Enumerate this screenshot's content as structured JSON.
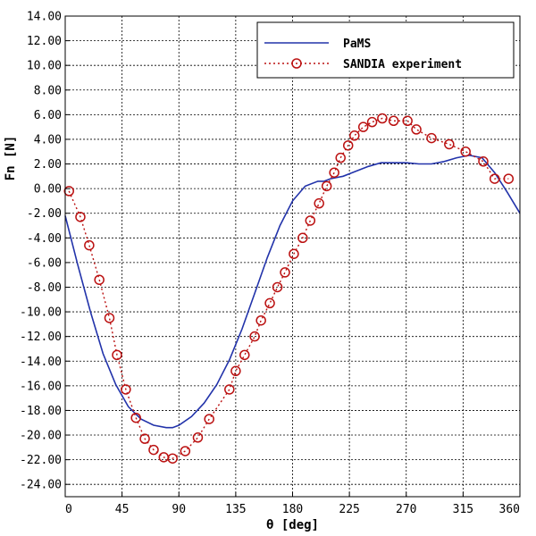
{
  "chart_data": {
    "type": "line",
    "xlabel": "θ [deg]",
    "ylabel": "Fn [N]",
    "xlim": [
      0,
      360
    ],
    "ylim": [
      -25,
      14
    ],
    "grid": true,
    "legend_position": "top-right",
    "x_ticks": [
      0,
      45,
      90,
      135,
      180,
      225,
      270,
      315,
      360
    ],
    "x_tick_labels": [
      "0",
      "45",
      "90",
      "135",
      "180",
      "225",
      "270",
      "315",
      "360"
    ],
    "y_ticks": [
      14,
      12,
      10,
      8,
      6,
      4,
      2,
      0,
      -2,
      -4,
      -6,
      -8,
      -10,
      -12,
      -14,
      -16,
      -18,
      -20,
      -22,
      -24
    ],
    "y_tick_labels": [
      "14.00",
      "12.00",
      "10.00",
      "8.00",
      "6.00",
      "4.00",
      "2.00",
      "0.00",
      "-2.00",
      "-4.00",
      "-6.00",
      "-8.00",
      "-10.00",
      "-12.00",
      "-14.00",
      "-16.00",
      "-18.00",
      "-20.00",
      "-22.00",
      "-24.00"
    ],
    "series": [
      {
        "name": "PaMS",
        "style": "solid-line",
        "color": "#2233aa",
        "x": [
          0,
          10,
          20,
          30,
          40,
          50,
          60,
          70,
          80,
          85,
          90,
          100,
          110,
          120,
          130,
          140,
          150,
          160,
          170,
          180,
          190,
          200,
          205,
          210,
          220,
          230,
          240,
          250,
          260,
          270,
          280,
          290,
          300,
          310,
          320,
          330,
          340,
          350,
          360
        ],
        "y": [
          -2.2,
          -6.2,
          -10.0,
          -13.4,
          -15.9,
          -17.7,
          -18.7,
          -19.2,
          -19.4,
          -19.4,
          -19.2,
          -18.5,
          -17.4,
          -15.9,
          -13.9,
          -11.4,
          -8.5,
          -5.6,
          -3.0,
          -1.0,
          0.2,
          0.6,
          0.6,
          0.8,
          1.0,
          1.4,
          1.8,
          2.1,
          2.1,
          2.1,
          2.0,
          2.0,
          2.2,
          2.5,
          2.7,
          2.5,
          1.3,
          -0.3,
          -2.0
        ]
      },
      {
        "name": "SANDIA experiment",
        "style": "dotted-circles",
        "color": "#bb1111",
        "x": [
          3,
          12,
          19,
          27,
          35,
          41,
          48,
          56,
          63,
          70,
          78,
          85,
          95,
          105,
          114,
          130,
          135,
          142,
          150,
          155,
          162,
          168,
          174,
          181,
          188,
          194,
          201,
          207,
          213,
          218,
          224,
          229,
          236,
          243,
          251,
          260,
          271,
          278,
          290,
          304,
          317,
          331,
          340,
          351
        ],
        "y": [
          -0.2,
          -2.3,
          -4.6,
          -7.4,
          -10.5,
          -13.5,
          -16.3,
          -18.6,
          -20.3,
          -21.2,
          -21.8,
          -21.9,
          -21.3,
          -20.2,
          -18.7,
          -16.3,
          -14.8,
          -13.5,
          -12.0,
          -10.7,
          -9.3,
          -8.0,
          -6.8,
          -5.3,
          -4.0,
          -2.6,
          -1.2,
          0.2,
          1.3,
          2.5,
          3.5,
          4.3,
          5.0,
          5.4,
          5.7,
          5.5,
          5.5,
          4.8,
          4.1,
          3.6,
          3.0,
          2.2,
          0.8,
          0.8
        ]
      }
    ]
  }
}
